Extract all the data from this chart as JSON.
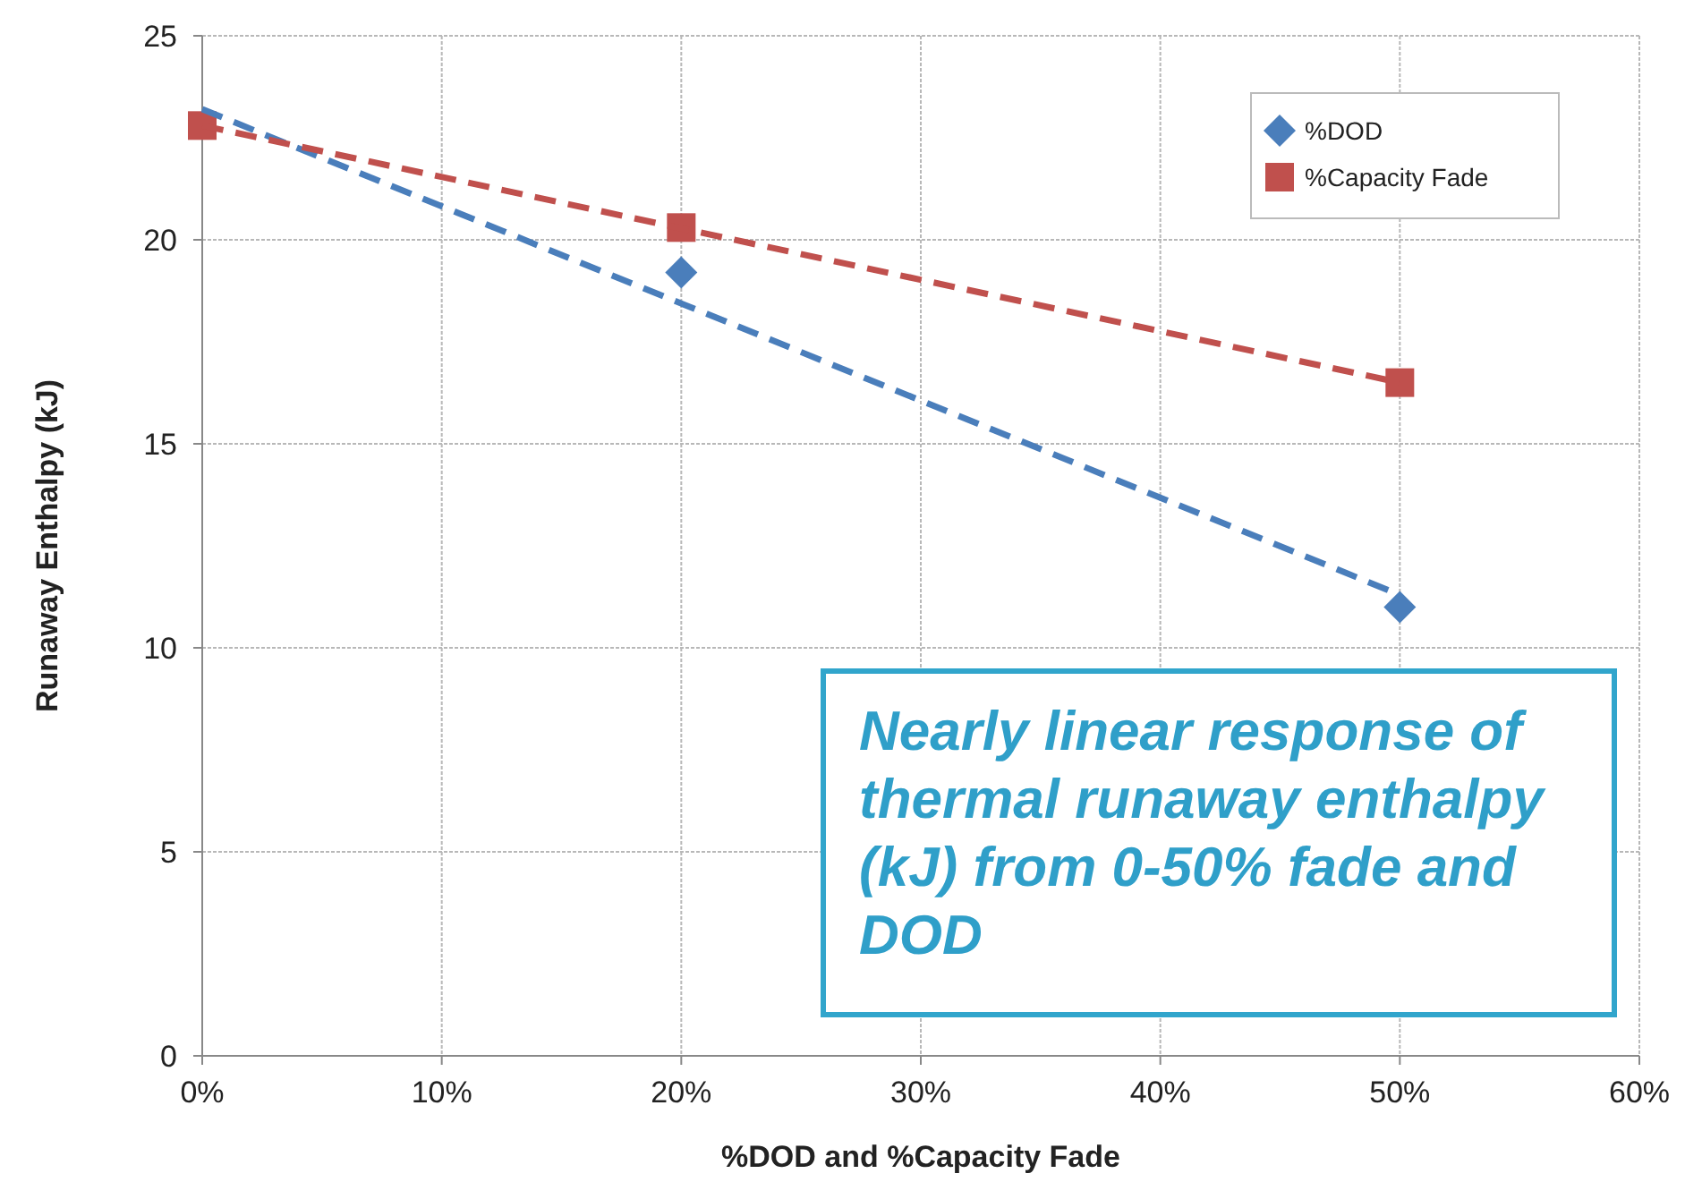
{
  "chart_data": {
    "type": "scatter",
    "xlabel": "%DOD and %Capacity Fade",
    "ylabel": "Runaway Enthalpy (kJ)",
    "xlim": [
      0,
      60
    ],
    "xticks": [
      {
        "value": 0,
        "label": "0%"
      },
      {
        "value": 10,
        "label": "10%"
      },
      {
        "value": 20,
        "label": "20%"
      },
      {
        "value": 30,
        "label": "30%"
      },
      {
        "value": 40,
        "label": "40%"
      },
      {
        "value": 50,
        "label": "50%"
      },
      {
        "value": 60,
        "label": "60%"
      }
    ],
    "ylim": [
      0,
      25
    ],
    "yticks": [
      0,
      5,
      10,
      15,
      20,
      25
    ],
    "grid": true,
    "legend": "top right",
    "series": [
      {
        "name": "%DOD",
        "marker": "diamond",
        "color": "#4a7ebb",
        "x": [
          20,
          50
        ],
        "values": [
          19.2,
          11.0
        ]
      },
      {
        "name": "%Capacity Fade",
        "marker": "square",
        "color": "#c0504d",
        "x": [
          0,
          20,
          50
        ],
        "values": [
          22.8,
          20.3,
          16.5
        ]
      },
      {
        "type": "line",
        "line_style": "dashed",
        "marker": "none",
        "color": "#4a7ebb",
        "x": [
          0,
          50
        ],
        "values": [
          23.2,
          11.3
        ]
      },
      {
        "type": "line",
        "line_style": "dashed",
        "marker": "none",
        "color": "#c0504d",
        "x": [
          0,
          50
        ],
        "values": [
          22.8,
          16.5
        ]
      }
    ],
    "annotations": [
      "Nearly linear response of thermal runaway enthalpy (kJ) from 0-50% fade and DOD"
    ]
  }
}
